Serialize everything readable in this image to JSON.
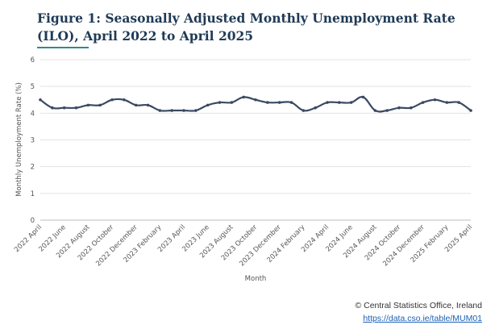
{
  "title": "Figure 1: Seasonally Adjusted Monthly Unemployment Rate (ILO), April 2022 to April 2025",
  "source": {
    "copyright": "© Central Statistics Office, Ireland",
    "link": "https://data.cso.ie/table/MUM01"
  },
  "colors": {
    "line": "#3b4a63",
    "grid": "#e3e3e3",
    "title": "#1f3a55",
    "accent": "#2e8b8b"
  },
  "chart_data": {
    "type": "line",
    "title": "Figure 1: Seasonally Adjusted Monthly Unemployment Rate (ILO), April 2022 to April 2025",
    "xlabel": "Month",
    "ylabel": "Monthly Unemployment Rate (%)",
    "ylim": [
      0,
      6
    ],
    "yticks": [
      "0",
      "1",
      "2",
      "3",
      "4",
      "5",
      "6"
    ],
    "grid": true,
    "legend": "none",
    "xticks": [
      "2022 April",
      "2022 June",
      "2022 August",
      "2022 October",
      "2022 December",
      "2023 February",
      "2023 April",
      "2023 June",
      "2023 August",
      "2023 October",
      "2023 December",
      "2024 February",
      "2024 April",
      "2024 June",
      "2024 August",
      "2024 October",
      "2024 December",
      "2025 February",
      "2025 April"
    ],
    "series": [
      {
        "x": [
          "2022 April",
          "2022 May",
          "2022 June",
          "2022 July",
          "2022 August",
          "2022 September",
          "2022 October",
          "2022 November",
          "2022 December",
          "2023 January",
          "2023 February",
          "2023 March",
          "2023 April",
          "2023 May",
          "2023 June",
          "2023 July",
          "2023 August",
          "2023 September",
          "2023 October",
          "2023 November",
          "2023 December",
          "2024 January",
          "2024 February",
          "2024 March",
          "2024 April",
          "2024 May",
          "2024 June",
          "2024 July",
          "2024 August",
          "2024 September",
          "2024 October",
          "2024 November",
          "2024 December",
          "2025 January",
          "2025 February",
          "2025 March",
          "2025 April"
        ],
        "values": [
          4.5,
          4.2,
          4.2,
          4.2,
          4.3,
          4.3,
          4.5,
          4.5,
          4.3,
          4.3,
          4.1,
          4.1,
          4.1,
          4.1,
          4.3,
          4.4,
          4.4,
          4.6,
          4.5,
          4.4,
          4.4,
          4.4,
          4.1,
          4.2,
          4.4,
          4.4,
          4.4,
          4.6,
          4.1,
          4.1,
          4.2,
          4.2,
          4.4,
          4.5,
          4.4,
          4.4,
          4.1
        ]
      }
    ]
  }
}
